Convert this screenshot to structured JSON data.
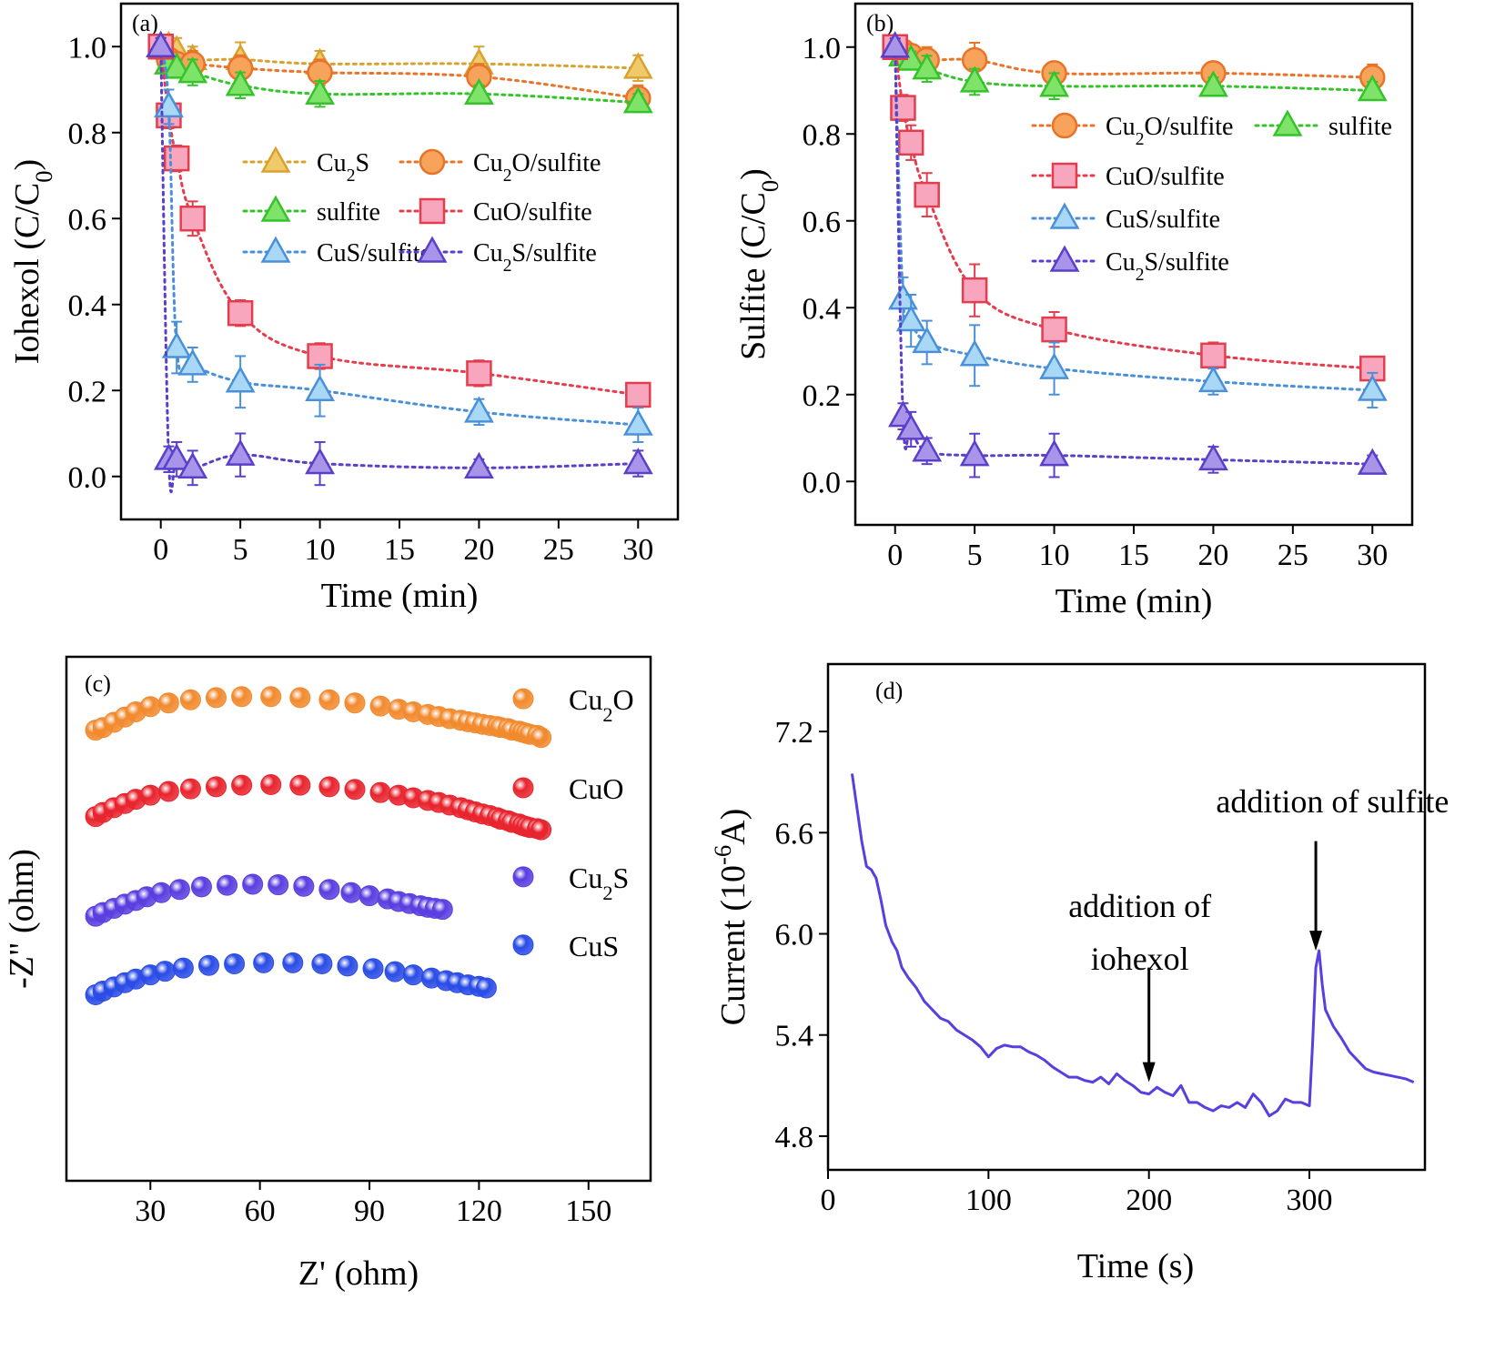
{
  "chart_data": [
    {
      "panel": "(a)",
      "type": "line",
      "xlabel": "Time (min)",
      "ylabel": "Iohexol (C/C",
      "ylabel_sub": "0",
      "ylabel_end": ")",
      "xlim": [
        -2.5,
        32.5
      ],
      "ylim": [
        -0.1,
        1.1
      ],
      "xticks": [
        0,
        5,
        10,
        15,
        20,
        25,
        30
      ],
      "yticks": [
        0.0,
        0.2,
        0.4,
        0.6,
        0.8,
        1.0
      ],
      "ytick_labels": [
        "0.0",
        "0.2",
        "0.4",
        "0.6",
        "0.8",
        "1.0"
      ],
      "x": [
        0,
        0.5,
        1,
        2,
        5,
        10,
        20,
        30
      ],
      "series": [
        {
          "name": "Cu",
          "name_sub": "2",
          "name_end": "S",
          "marker": "triangle",
          "fill": "#f0c96b",
          "stroke": "#d9a22f",
          "y": [
            1.0,
            1.0,
            0.99,
            0.97,
            0.97,
            0.96,
            0.96,
            0.95
          ],
          "err": [
            0.02,
            0.02,
            0.03,
            0.03,
            0.04,
            0.03,
            0.04,
            0.03
          ]
        },
        {
          "name": "Cu",
          "name_sub": "2",
          "name_end": "O/sulfite",
          "marker": "circle",
          "fill": "#f7a35c",
          "stroke": "#e8742a",
          "y": [
            1.0,
            0.97,
            0.96,
            0.96,
            0.95,
            0.94,
            0.93,
            0.88
          ],
          "err": [
            0.02,
            0.02,
            0.02,
            0.03,
            0.03,
            0.03,
            0.03,
            0.03
          ]
        },
        {
          "name": "sulfite",
          "name_sub": "",
          "name_end": "",
          "marker": "triangle",
          "fill": "#7fe36a",
          "stroke": "#34c32a",
          "y": [
            1.0,
            0.96,
            0.95,
            0.94,
            0.91,
            0.89,
            0.89,
            0.87
          ],
          "err": [
            0.02,
            0.02,
            0.02,
            0.03,
            0.03,
            0.03,
            0.02,
            0.02
          ]
        },
        {
          "name": "CuO/sulfite",
          "name_sub": "",
          "name_end": "",
          "marker": "square",
          "fill": "#f7a6bd",
          "stroke": "#e33d4e",
          "y": [
            1.0,
            0.84,
            0.74,
            0.6,
            0.38,
            0.28,
            0.24,
            0.19
          ],
          "err": [
            0.02,
            0.03,
            0.03,
            0.04,
            0.03,
            0.03,
            0.03,
            0.02
          ]
        },
        {
          "name": "CuS/sulfite",
          "name_sub": "",
          "name_end": "",
          "marker": "triangle",
          "fill": "#a9d8f7",
          "stroke": "#4a90d9",
          "y": [
            1.0,
            0.86,
            0.3,
            0.26,
            0.22,
            0.2,
            0.15,
            0.12
          ],
          "err": [
            0.02,
            0.04,
            0.06,
            0.04,
            0.06,
            0.06,
            0.03,
            0.04
          ]
        },
        {
          "name": "Cu",
          "name_sub": "2",
          "name_end": "S/sulfite",
          "marker": "triangle",
          "fill": "#a894e8",
          "stroke": "#5b3fc9",
          "y": [
            1.0,
            0.04,
            0.04,
            0.02,
            0.05,
            0.03,
            0.02,
            0.03
          ],
          "err": [
            0.02,
            0.03,
            0.04,
            0.04,
            0.05,
            0.05,
            0.02,
            0.03
          ]
        }
      ]
    },
    {
      "panel": "(b)",
      "type": "line",
      "xlabel": "Time (min)",
      "ylabel": "Sulfite (C/C",
      "ylabel_sub": "0",
      "ylabel_end": ")",
      "xlim": [
        -2.5,
        32.5
      ],
      "ylim": [
        -0.1,
        1.1
      ],
      "xticks": [
        0,
        5,
        10,
        15,
        20,
        25,
        30
      ],
      "yticks": [
        0.0,
        0.2,
        0.4,
        0.6,
        0.8,
        1.0
      ],
      "ytick_labels": [
        "0.0",
        "0.2",
        "0.4",
        "0.6",
        "0.8",
        "1.0"
      ],
      "x": [
        0,
        0.5,
        1,
        2,
        5,
        10,
        20,
        30
      ],
      "series": [
        {
          "name": "Cu",
          "name_sub": "2",
          "name_end": "O/sulfite",
          "marker": "circle",
          "fill": "#f7a35c",
          "stroke": "#e8742a",
          "y": [
            1.0,
            0.99,
            0.98,
            0.97,
            0.97,
            0.94,
            0.94,
            0.93
          ],
          "err": [
            0.02,
            0.02,
            0.02,
            0.03,
            0.04,
            0.02,
            0.02,
            0.03
          ]
        },
        {
          "name": "sulfite",
          "name_sub": "",
          "name_end": "",
          "marker": "triangle",
          "fill": "#7fe36a",
          "stroke": "#34c32a",
          "y": [
            1.0,
            0.98,
            0.97,
            0.95,
            0.92,
            0.91,
            0.91,
            0.9
          ],
          "err": [
            0.02,
            0.02,
            0.02,
            0.03,
            0.03,
            0.03,
            0.02,
            0.02
          ]
        },
        {
          "name": "CuO/sulfite",
          "name_sub": "",
          "name_end": "",
          "marker": "square",
          "fill": "#f7a6bd",
          "stroke": "#e33d4e",
          "y": [
            1.0,
            0.86,
            0.78,
            0.66,
            0.44,
            0.35,
            0.29,
            0.26
          ],
          "err": [
            0.02,
            0.03,
            0.04,
            0.05,
            0.06,
            0.04,
            0.03,
            0.02
          ]
        },
        {
          "name": "CuS/sulfite",
          "name_sub": "",
          "name_end": "",
          "marker": "triangle",
          "fill": "#a9d8f7",
          "stroke": "#4a90d9",
          "y": [
            1.0,
            0.42,
            0.37,
            0.32,
            0.29,
            0.26,
            0.23,
            0.21
          ],
          "err": [
            0.02,
            0.05,
            0.06,
            0.05,
            0.07,
            0.06,
            0.03,
            0.04
          ]
        },
        {
          "name": "Cu",
          "name_sub": "2",
          "name_end": "S/sulfite",
          "marker": "triangle",
          "fill": "#a894e8",
          "stroke": "#5b3fc9",
          "y": [
            1.0,
            0.15,
            0.12,
            0.07,
            0.06,
            0.06,
            0.05,
            0.04
          ],
          "err": [
            0.02,
            0.03,
            0.04,
            0.03,
            0.05,
            0.05,
            0.03,
            0.02
          ]
        }
      ]
    },
    {
      "panel": "(c)",
      "type": "scatter",
      "xlabel": "Z' (ohm)",
      "ylabel": "-Z\" (ohm)",
      "xlim": [
        7,
        167
      ],
      "ylim": [
        0,
        10
      ],
      "xticks": [
        30,
        60,
        90,
        120,
        150
      ],
      "yticks": [],
      "series": [
        {
          "name": "Cu",
          "name_sub": "2",
          "name_end": "O",
          "color": "#f28a2e",
          "label_y": 9.2,
          "x": [
            15,
            17,
            20,
            23,
            26,
            30,
            35,
            41,
            48,
            55,
            63,
            71,
            79,
            86,
            93,
            98,
            102,
            106,
            109,
            112,
            115,
            117,
            119,
            121,
            123,
            125,
            126,
            128,
            129,
            131,
            132,
            133,
            134,
            136,
            137
          ],
          "y": [
            8.6,
            8.65,
            8.75,
            8.85,
            8.95,
            9.05,
            9.12,
            9.18,
            9.22,
            9.24,
            9.24,
            9.22,
            9.18,
            9.12,
            9.06,
            9.0,
            8.95,
            8.9,
            8.86,
            8.82,
            8.79,
            8.76,
            8.74,
            8.71,
            8.69,
            8.67,
            8.65,
            8.63,
            8.6,
            8.58,
            8.56,
            8.54,
            8.52,
            8.5,
            8.46
          ]
        },
        {
          "name": "CuO",
          "name_sub": "",
          "name_end": "",
          "color": "#e8242e",
          "label_y": 7.5,
          "x": [
            15,
            17,
            20,
            23,
            26,
            30,
            35,
            41,
            48,
            55,
            63,
            71,
            79,
            86,
            93,
            98,
            102,
            106,
            109,
            112,
            115,
            117,
            119,
            121,
            123,
            125,
            126,
            128,
            129,
            131,
            132,
            133,
            134,
            136,
            137
          ],
          "y": [
            6.95,
            7.03,
            7.12,
            7.2,
            7.28,
            7.36,
            7.43,
            7.48,
            7.52,
            7.55,
            7.56,
            7.55,
            7.52,
            7.47,
            7.41,
            7.36,
            7.31,
            7.26,
            7.22,
            7.17,
            7.12,
            7.08,
            7.04,
            7.0,
            6.97,
            6.93,
            6.9,
            6.87,
            6.84,
            6.81,
            6.78,
            6.76,
            6.74,
            6.72,
            6.7
          ]
        },
        {
          "name": "Cu",
          "name_sub": "2",
          "name_end": "S",
          "color": "#5a3ee0",
          "label_y": 5.8,
          "x": [
            15,
            17,
            20,
            23,
            26,
            29,
            33,
            38,
            44,
            51,
            58,
            65,
            72,
            79,
            85,
            90,
            95,
            98,
            101,
            104,
            106,
            108,
            110
          ],
          "y": [
            5.05,
            5.12,
            5.2,
            5.28,
            5.35,
            5.42,
            5.5,
            5.56,
            5.61,
            5.64,
            5.66,
            5.65,
            5.62,
            5.56,
            5.5,
            5.44,
            5.38,
            5.33,
            5.29,
            5.25,
            5.22,
            5.2,
            5.18
          ]
        },
        {
          "name": "CuS",
          "name_sub": "",
          "name_end": "",
          "color": "#2a4ce6",
          "label_y": 4.5,
          "x": [
            15,
            17,
            20,
            23,
            26,
            30,
            34,
            39,
            46,
            53,
            61,
            69,
            77,
            84,
            91,
            97,
            102,
            107,
            111,
            114,
            117,
            120,
            122
          ],
          "y": [
            3.55,
            3.62,
            3.7,
            3.78,
            3.85,
            3.93,
            4.0,
            4.06,
            4.11,
            4.14,
            4.16,
            4.16,
            4.14,
            4.1,
            4.05,
            3.99,
            3.93,
            3.87,
            3.82,
            3.78,
            3.74,
            3.71,
            3.68
          ]
        }
      ]
    },
    {
      "panel": "(d)",
      "type": "line",
      "xlabel": "Time (s)",
      "ylabel": "Current (10",
      "ylabel_sup": "-6",
      "ylabel_end": "A)",
      "xlim": [
        0,
        372
      ],
      "ylim": [
        4.6,
        7.6
      ],
      "xticks": [
        0,
        100,
        200,
        300
      ],
      "yticks": [
        4.8,
        5.4,
        6.0,
        6.6,
        7.2
      ],
      "ytick_labels": [
        "4.8",
        "5.4",
        "6.0",
        "6.6",
        "7.2"
      ],
      "color": "#5a3ee0",
      "x": [
        15,
        18,
        21,
        24,
        27,
        30,
        33,
        36,
        40,
        43,
        46,
        50,
        55,
        60,
        65,
        70,
        75,
        80,
        85,
        90,
        95,
        100,
        105,
        110,
        115,
        120,
        125,
        130,
        135,
        140,
        145,
        150,
        155,
        160,
        165,
        170,
        175,
        180,
        185,
        190,
        195,
        200,
        205,
        210,
        215,
        220,
        225,
        230,
        235,
        240,
        245,
        250,
        255,
        260,
        265,
        270,
        275,
        280,
        285,
        290,
        295,
        300,
        302,
        304,
        306,
        308,
        310,
        315,
        320,
        325,
        330,
        335,
        340,
        345,
        350,
        355,
        360,
        365
      ],
      "y": [
        6.95,
        6.75,
        6.55,
        6.4,
        6.38,
        6.33,
        6.2,
        6.05,
        5.95,
        5.9,
        5.8,
        5.74,
        5.68,
        5.6,
        5.55,
        5.5,
        5.48,
        5.43,
        5.4,
        5.37,
        5.33,
        5.27,
        5.32,
        5.34,
        5.33,
        5.33,
        5.3,
        5.28,
        5.25,
        5.21,
        5.18,
        5.15,
        5.15,
        5.13,
        5.12,
        5.15,
        5.11,
        5.17,
        5.13,
        5.1,
        5.06,
        5.05,
        5.09,
        5.06,
        5.04,
        5.1,
        5.0,
        5.0,
        4.97,
        4.95,
        4.98,
        4.97,
        5.0,
        4.97,
        5.05,
        5.0,
        4.92,
        4.95,
        5.02,
        5.0,
        5.0,
        4.98,
        5.35,
        5.8,
        5.9,
        5.7,
        5.55,
        5.45,
        5.38,
        5.3,
        5.25,
        5.2,
        5.18,
        5.17,
        5.16,
        5.15,
        5.14,
        5.12
      ],
      "annotations": [
        {
          "lines": [
            "addition of",
            "iohexol"
          ],
          "arrow_x": 200,
          "arrow_from": 5.8,
          "arrow_to": 5.12
        },
        {
          "lines": [
            "addition of sulfite"
          ],
          "arrow_x": 304,
          "arrow_from": 6.55,
          "arrow_to": 5.9
        }
      ]
    }
  ]
}
